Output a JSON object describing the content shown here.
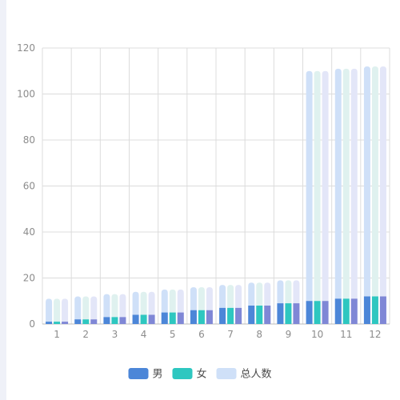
{
  "chart_data": {
    "type": "bar",
    "categories": [
      "1",
      "2",
      "3",
      "4",
      "5",
      "6",
      "7",
      "8",
      "9",
      "10",
      "11",
      "12"
    ],
    "series": [
      {
        "name": "男",
        "color": "#4c86d8",
        "fade": "#cfe0f8",
        "values": [
          1,
          2,
          3,
          4,
          5,
          6,
          7,
          8,
          9,
          10,
          11,
          12
        ],
        "totals": [
          11,
          12,
          13,
          14,
          15,
          16,
          17,
          18,
          19,
          110,
          111,
          112
        ]
      },
      {
        "name": "女",
        "color": "#2ec7c0",
        "fade": "#dff1ef",
        "values": [
          1,
          2,
          3,
          4,
          5,
          6,
          7,
          8,
          9,
          10,
          11,
          12
        ],
        "totals": [
          11,
          12,
          13,
          14,
          15,
          16,
          17,
          18,
          19,
          110,
          111,
          112
        ]
      },
      {
        "name": "总人数",
        "color": "#cfe0f8",
        "values": [
          11,
          12,
          13,
          14,
          15,
          16,
          17,
          18,
          19,
          110,
          111,
          112
        ]
      }
    ],
    "third_bar_colors": {
      "base": "#7f87d6",
      "fade": "#e3e6f8"
    },
    "ylim": [
      0,
      120
    ],
    "yticks": [
      0,
      20,
      40,
      60,
      80,
      100,
      120
    ],
    "grid": true,
    "legend_position": "bottom-center",
    "title": "",
    "xlabel": "",
    "ylabel": ""
  }
}
